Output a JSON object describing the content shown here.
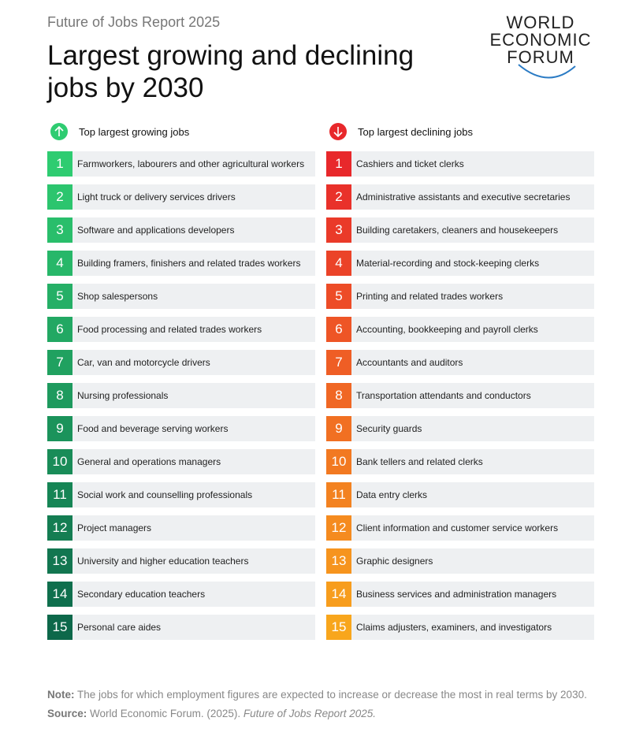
{
  "header": {
    "kicker": "Future of Jobs Report 2025",
    "title_lines": [
      "Largest growing and declining",
      "jobs by 2030"
    ],
    "logo_lines": [
      "WORLD",
      "ECONOMIC",
      "FORUM"
    ]
  },
  "lists": [
    {
      "heading": "Top largest growing jobs",
      "items": [
        {
          "rank": "1",
          "label": "Farmworkers, labourers and other agricultural workers"
        },
        {
          "rank": "2",
          "label": "Light truck or delivery services drivers"
        },
        {
          "rank": "3",
          "label": "Software and applications developers"
        },
        {
          "rank": "4",
          "label": "Building framers, finishers and related trades workers"
        },
        {
          "rank": "5",
          "label": "Shop salespersons"
        },
        {
          "rank": "6",
          "label": "Food processing and related trades workers"
        },
        {
          "rank": "7",
          "label": "Car, van and motorcycle drivers"
        },
        {
          "rank": "8",
          "label": "Nursing professionals"
        },
        {
          "rank": "9",
          "label": "Food and beverage serving workers"
        },
        {
          "rank": "10",
          "label": "General and operations managers"
        },
        {
          "rank": "11",
          "label": "Social work and counselling professionals"
        },
        {
          "rank": "12",
          "label": "Project managers"
        },
        {
          "rank": "13",
          "label": "University and higher education teachers"
        },
        {
          "rank": "14",
          "label": "Secondary education teachers"
        },
        {
          "rank": "15",
          "label": "Personal care aides"
        }
      ]
    },
    {
      "heading": "Top largest declining jobs",
      "items": [
        {
          "rank": "1",
          "label": "Cashiers and ticket clerks"
        },
        {
          "rank": "2",
          "label": "Administrative assistants and executive secretaries"
        },
        {
          "rank": "3",
          "label": "Building caretakers, cleaners and housekeepers"
        },
        {
          "rank": "4",
          "label": "Material-recording and stock-keeping clerks"
        },
        {
          "rank": "5",
          "label": "Printing and related trades workers"
        },
        {
          "rank": "6",
          "label": "Accounting, bookkeeping and payroll clerks"
        },
        {
          "rank": "7",
          "label": "Accountants and auditors"
        },
        {
          "rank": "8",
          "label": "Transportation attendants and conductors"
        },
        {
          "rank": "9",
          "label": "Security guards"
        },
        {
          "rank": "10",
          "label": "Bank tellers and related clerks"
        },
        {
          "rank": "11",
          "label": "Data entry clerks"
        },
        {
          "rank": "12",
          "label": "Client information and customer service workers"
        },
        {
          "rank": "13",
          "label": "Graphic designers"
        },
        {
          "rank": "14",
          "label": "Business services and administration managers"
        },
        {
          "rank": "15",
          "label": "Claims adjusters, examiners, and investigators"
        }
      ]
    }
  ],
  "footer": {
    "note": {
      "label": "Note:",
      "text": "The jobs for which employment figures are expected to increase or decrease the most in real terms by 2030."
    },
    "source": {
      "label": "Source:",
      "text": "World Economic Forum. (2025).",
      "title": "Future of Jobs Report 2025."
    }
  }
}
